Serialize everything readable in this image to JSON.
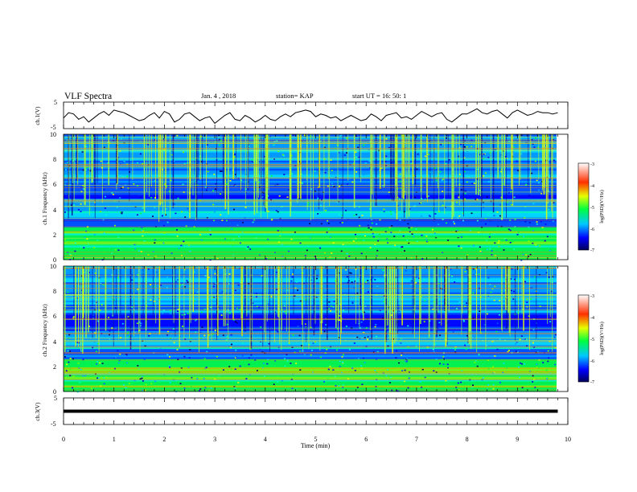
{
  "header": {
    "title": "VLF Spectra",
    "date": "Jan. 4 , 2018",
    "station": "station= KAP",
    "start": "start UT =  16: 50: 1"
  },
  "chart_data": [
    {
      "type": "line",
      "name": "ch1-waveform",
      "ylabel": "ch.1(V)",
      "xlim": [
        0,
        10
      ],
      "ylim": [
        -5,
        5
      ],
      "yticks": [
        "5",
        "-5"
      ],
      "series": [
        {
          "x": [
            0.0,
            0.1,
            0.2,
            0.3,
            0.4,
            0.5,
            0.6,
            0.7,
            0.8,
            0.9,
            1.0,
            1.1,
            1.2,
            1.3,
            1.4,
            1.5,
            1.6,
            1.7,
            1.8,
            1.9,
            2.0,
            2.1,
            2.2,
            2.3,
            2.4,
            2.5,
            2.6,
            2.7,
            2.8,
            2.9,
            3.0,
            3.1,
            3.2,
            3.3,
            3.4,
            3.5,
            3.6,
            3.7,
            3.8,
            3.9,
            4.0,
            4.1,
            4.2,
            4.3,
            4.4,
            4.5,
            4.6,
            4.7,
            4.8,
            4.9,
            5.0,
            5.1,
            5.2,
            5.3,
            5.4,
            5.5,
            5.6,
            5.7,
            5.8,
            5.9,
            6.0,
            6.1,
            6.2,
            6.3,
            6.4,
            6.5,
            6.6,
            6.7,
            6.8,
            6.9,
            7.0,
            7.1,
            7.2,
            7.3,
            7.4,
            7.5,
            7.6,
            7.7,
            7.8,
            7.9,
            8.0,
            8.1,
            8.2,
            8.3,
            8.4,
            8.5,
            8.6,
            8.7,
            8.8,
            8.9,
            9.0,
            9.1,
            9.2,
            9.3,
            9.4,
            9.5,
            9.6,
            9.7,
            9.8
          ],
          "y": [
            -1.0,
            1.0,
            0.5,
            -1.5,
            -0.5,
            -2.5,
            -1.0,
            0.5,
            1.5,
            0.0,
            2.0,
            1.5,
            1.0,
            0.0,
            -1.0,
            -2.0,
            -1.5,
            0.0,
            1.0,
            -1.0,
            1.5,
            0.5,
            -2.5,
            -1.5,
            0.5,
            1.0,
            -0.5,
            -2.0,
            -1.0,
            -0.5,
            -3.0,
            -1.5,
            0.0,
            1.0,
            -1.5,
            -2.0,
            0.0,
            -1.0,
            -2.5,
            -1.5,
            0.0,
            -1.5,
            -2.0,
            -0.5,
            0.5,
            -0.5,
            1.0,
            1.5,
            2.0,
            1.5,
            -0.5,
            0.5,
            0.0,
            -1.0,
            -0.5,
            -2.0,
            -1.0,
            0.0,
            -1.0,
            -2.0,
            -1.5,
            0.5,
            -0.5,
            -2.0,
            0.0,
            0.5,
            1.0,
            -1.0,
            -0.5,
            -1.5,
            0.0,
            1.5,
            0.5,
            -0.5,
            0.5,
            1.0,
            -1.5,
            -2.5,
            -1.0,
            0.5,
            0.5,
            1.5,
            2.5,
            1.0,
            0.5,
            1.5,
            2.0,
            0.5,
            -1.0,
            1.0,
            2.0,
            1.0,
            0.0,
            0.5,
            1.5,
            1.0,
            1.0,
            0.5,
            1.0
          ]
        }
      ]
    },
    {
      "type": "heatmap",
      "name": "ch1-spectrogram",
      "ylabel": "ch.1 Frequency (kHz)",
      "xlim": [
        0,
        10
      ],
      "ylim": [
        0,
        10
      ],
      "yticks": [
        "0",
        "2",
        "4",
        "6",
        "8",
        "10"
      ],
      "colorbar": {
        "label": "log(PSD)(V²/Hz)",
        "range": [
          -7,
          -3
        ],
        "ticks": [
          "-3",
          "-4",
          "-5",
          "-6",
          "-7"
        ]
      }
    },
    {
      "type": "heatmap",
      "name": "ch2-spectrogram",
      "ylabel": "ch.2 Frequency (kHz)",
      "xlim": [
        0,
        10
      ],
      "ylim": [
        0,
        10
      ],
      "yticks": [
        "0",
        "2",
        "4",
        "6",
        "8",
        "10"
      ],
      "colorbar": {
        "label": "log(PSD)(V²/Hz)",
        "range": [
          -7,
          -3
        ],
        "ticks": [
          "-3",
          "-4",
          "-5",
          "-6",
          "-7"
        ]
      }
    },
    {
      "type": "line",
      "name": "ch3-waveform",
      "ylabel": "ch.3(V)",
      "xlabel": "Time (min)",
      "xlim": [
        0,
        10
      ],
      "ylim": [
        -5,
        5
      ],
      "yticks": [
        "5",
        "-5"
      ],
      "xticks": [
        "0",
        "1",
        "2",
        "3",
        "4",
        "5",
        "6",
        "7",
        "8",
        "9",
        "10"
      ],
      "series": [
        {
          "x": [
            0,
            9.8
          ],
          "y": [
            0,
            0
          ]
        }
      ]
    }
  ]
}
